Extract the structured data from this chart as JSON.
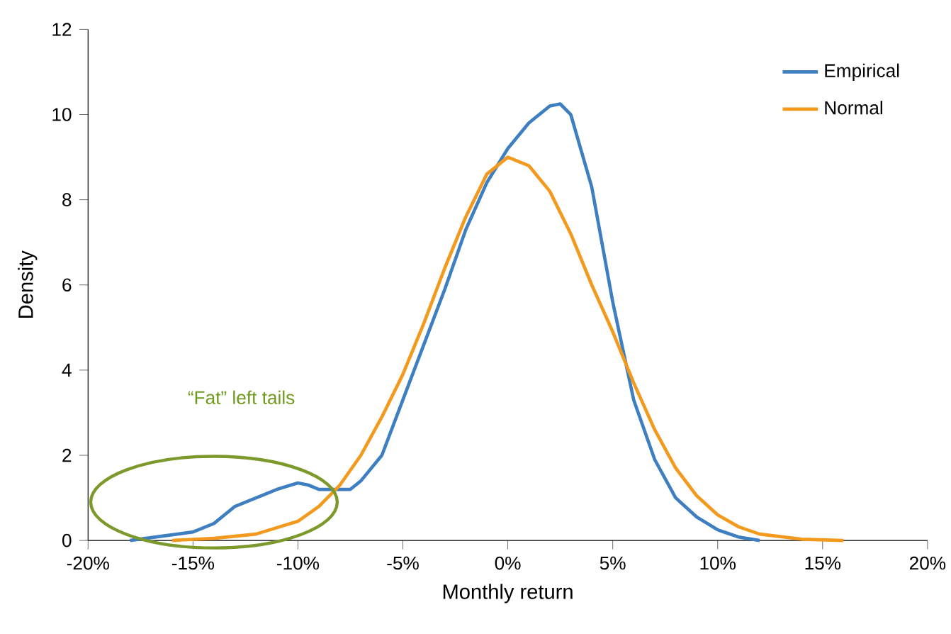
{
  "chart_data": {
    "type": "line",
    "xlabel": "Monthly return",
    "ylabel": "Density",
    "xlim": [
      -20,
      20
    ],
    "ylim": [
      0,
      12
    ],
    "xticks": [
      {
        "value": -20,
        "label": "-20%"
      },
      {
        "value": -15,
        "label": "-15%"
      },
      {
        "value": -10,
        "label": "-10%"
      },
      {
        "value": -5,
        "label": "-5%"
      },
      {
        "value": 0,
        "label": "0%"
      },
      {
        "value": 5,
        "label": "5%"
      },
      {
        "value": 10,
        "label": "10%"
      },
      {
        "value": 15,
        "label": "15%"
      },
      {
        "value": 20,
        "label": "20%"
      }
    ],
    "yticks": [
      0,
      2,
      4,
      6,
      8,
      10,
      12
    ],
    "legend": "top right",
    "grid": false,
    "marker": "none",
    "line_style": "solid",
    "annotations": [
      "“Fat” left tails"
    ],
    "series": [
      {
        "name": "Empirical",
        "color": "#3d7fc1",
        "x": [
          -18,
          -16.5,
          -15,
          -14,
          -13,
          -12,
          -11,
          -10,
          -9.5,
          -9,
          -8,
          -7.5,
          -7,
          -6,
          -5,
          -4,
          -3,
          -2,
          -1,
          0,
          1,
          2,
          2.5,
          3,
          4,
          5,
          6,
          7,
          8,
          9,
          10,
          11,
          12
        ],
        "values": [
          0,
          0.1,
          0.2,
          0.4,
          0.8,
          1.0,
          1.2,
          1.35,
          1.3,
          1.2,
          1.2,
          1.2,
          1.4,
          2.0,
          3.3,
          4.6,
          5.9,
          7.3,
          8.4,
          9.2,
          9.8,
          10.2,
          10.25,
          10.0,
          8.3,
          5.6,
          3.3,
          1.9,
          1.0,
          0.55,
          0.25,
          0.08,
          0
        ]
      },
      {
        "name": "Normal",
        "color": "#f39a1e",
        "x": [
          -16,
          -14,
          -12,
          -10,
          -9,
          -8,
          -7,
          -6,
          -5,
          -4,
          -3,
          -2,
          -1,
          0,
          1,
          2,
          3,
          4,
          5,
          6,
          7,
          8,
          9,
          10,
          11,
          12,
          14,
          16
        ],
        "values": [
          0,
          0.05,
          0.15,
          0.45,
          0.8,
          1.3,
          2.0,
          2.9,
          3.9,
          5.1,
          6.4,
          7.6,
          8.6,
          9.0,
          8.8,
          8.2,
          7.2,
          6.0,
          4.9,
          3.7,
          2.6,
          1.7,
          1.05,
          0.6,
          0.32,
          0.15,
          0.03,
          0
        ]
      }
    ]
  }
}
